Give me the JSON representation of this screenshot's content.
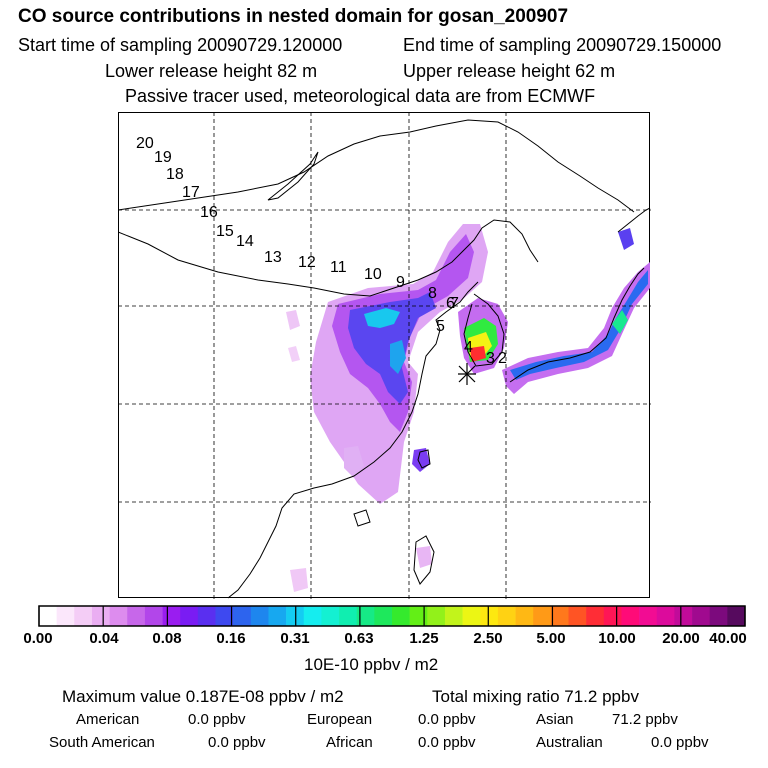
{
  "header": {
    "title": "CO  source contributions in nested domain for gosan_200907",
    "start_time": "Start time of sampling 20090729.120000",
    "end_time": "End time of sampling 20090729.150000",
    "lower_height": "Lower release height   82 m",
    "upper_height": "Upper release height   62 m",
    "note": "Passive tracer used, meteorological data are from ECMWF"
  },
  "map": {
    "trajectory_labels": [
      "20",
      "19",
      "18",
      "17",
      "16",
      "15",
      "14",
      "13",
      "12",
      "11",
      "10",
      "9",
      "8",
      "6",
      "7",
      "5",
      "4",
      "3",
      "2"
    ],
    "receptor_symbol": "star"
  },
  "colorbar": {
    "tick_labels": [
      "0.00",
      "0.04",
      "0.08",
      "0.16",
      "0.31",
      "0.63",
      "1.25",
      "2.50",
      "5.00",
      "10.00",
      "20.00",
      "40.00"
    ],
    "colors": [
      "#ffffff",
      "#fbe7fb",
      "#f4cdf6",
      "#eaaef2",
      "#dd8cee",
      "#c767ea",
      "#b246ea",
      "#9a1df0",
      "#7a1cf3",
      "#5a2ff0",
      "#3e49f0",
      "#2d64ee",
      "#1e86ee",
      "#17a8f0",
      "#14ccf2",
      "#15edef",
      "#14f0d2",
      "#10eeb0",
      "#16ea86",
      "#1ee85c",
      "#35ea2d",
      "#63ef16",
      "#92f11a",
      "#c2f41b",
      "#ecf614",
      "#fde810",
      "#ffd213",
      "#ffb814",
      "#ff9a17",
      "#ff781c",
      "#ff5424",
      "#ff2d36",
      "#ff1656",
      "#ff0b78",
      "#f20c93",
      "#dc0b9c",
      "#c10b9a",
      "#a00a8f",
      "#7c0a7d",
      "#560a5e"
    ],
    "units": "10E-10 ppbv / m2"
  },
  "stats": {
    "max_label": "Maximum value  0.187E-08 ppbv / m2",
    "total_label": "Total mixing ratio       71.2 ppbv",
    "regions": [
      {
        "name": "American",
        "value": "0.0 ppbv"
      },
      {
        "name": "European",
        "value": "0.0 ppbv"
      },
      {
        "name": "Asian",
        "value": "71.2 ppbv"
      },
      {
        "name": "South American",
        "value": "0.0 ppbv"
      },
      {
        "name": "African",
        "value": "0.0 ppbv"
      },
      {
        "name": "Australian",
        "value": "0.0 ppbv"
      }
    ]
  }
}
